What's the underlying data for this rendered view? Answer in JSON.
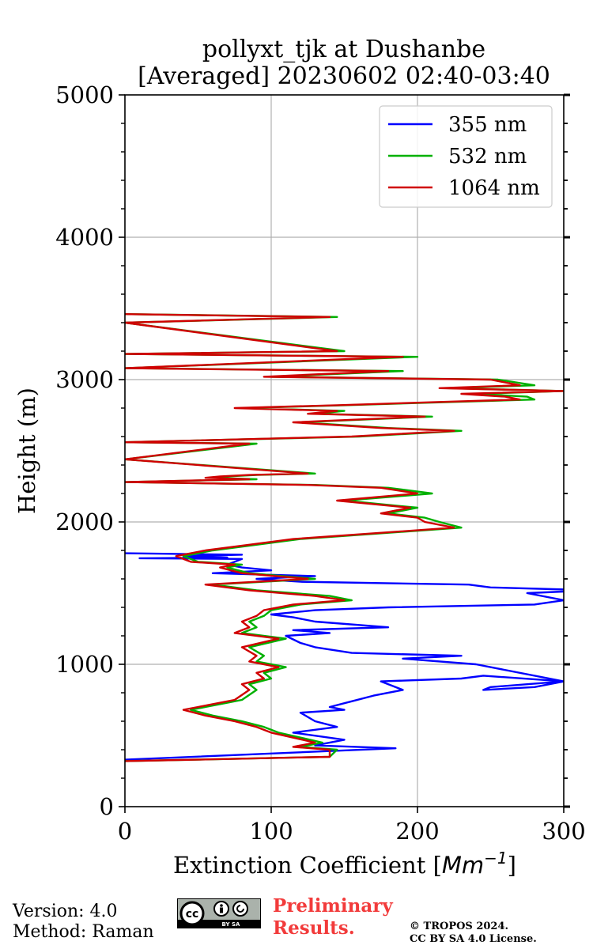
{
  "chart_data": {
    "type": "line",
    "title_line1": "pollyxt_tjk at Dushanbe",
    "title_line2": "[Averaged] 20230602 02:40-03:40",
    "xlabel": "Extinction Coefficient [",
    "xlabel_unit": "Mm",
    "xlabel_exp": "−1",
    "xlabel_end": "]",
    "ylabel": "Height (m)",
    "xlim": [
      0,
      300
    ],
    "ylim": [
      0,
      5000
    ],
    "xticks": [
      0,
      100,
      200,
      300
    ],
    "yticks": [
      0,
      1000,
      2000,
      3000,
      4000,
      5000
    ],
    "yminor_step": 200,
    "grid": true,
    "legend_position": "top-right",
    "series": [
      {
        "name": "355 nm",
        "color": "#0000ff",
        "x": [
          0,
          185,
          130,
          150,
          115,
          145,
          130,
          120,
          150,
          140,
          155,
          170,
          190,
          175,
          230,
          245,
          300,
          250,
          245,
          280,
          300,
          240,
          190,
          230,
          155,
          130,
          120,
          110,
          140,
          115,
          180,
          130,
          115,
          100,
          130,
          180,
          280,
          300,
          275,
          320,
          250,
          235,
          120,
          90,
          130,
          60,
          100,
          80,
          70,
          75,
          80,
          10,
          70,
          40,
          80,
          0
        ],
        "y": [
          330,
          410,
          430,
          470,
          520,
          560,
          600,
          660,
          680,
          700,
          740,
          780,
          820,
          880,
          900,
          920,
          880,
          840,
          820,
          840,
          880,
          1000,
          1040,
          1060,
          1080,
          1120,
          1150,
          1200,
          1220,
          1240,
          1260,
          1300,
          1330,
          1350,
          1380,
          1400,
          1420,
          1450,
          1500,
          1520,
          1540,
          1560,
          1580,
          1600,
          1620,
          1640,
          1660,
          1680,
          1700,
          1720,
          1740,
          1745,
          1750,
          1760,
          1770,
          1780
        ]
      },
      {
        "name": "532 nm",
        "color": "#00b000",
        "x": [
          0,
          140,
          145,
          120,
          135,
          105,
          95,
          80,
          60,
          45,
          55,
          80,
          90,
          85,
          100,
          95,
          110,
          90,
          95,
          85,
          110,
          80,
          90,
          85,
          95,
          100,
          120,
          155,
          140,
          90,
          60,
          130,
          85,
          70,
          80,
          50,
          40,
          60,
          90,
          120,
          230,
          215,
          205,
          180,
          200,
          150,
          210,
          180,
          130,
          0,
          90,
          60,
          70,
          90,
          130,
          0,
          90,
          0,
          160,
          230,
          180,
          120,
          210,
          130,
          150,
          80,
          150,
          280,
          275,
          240,
          300,
          220,
          280,
          255,
          100,
          190,
          0,
          200,
          0,
          150,
          0,
          145,
          0
        ],
        "y": [
          320,
          350,
          400,
          420,
          450,
          520,
          560,
          600,
          640,
          680,
          700,
          750,
          820,
          860,
          900,
          940,
          980,
          1020,
          1060,
          1120,
          1180,
          1220,
          1260,
          1300,
          1340,
          1380,
          1420,
          1450,
          1480,
          1520,
          1560,
          1600,
          1640,
          1680,
          1700,
          1720,
          1760,
          1800,
          1840,
          1880,
          1960,
          2000,
          2030,
          2060,
          2100,
          2150,
          2200,
          2240,
          2260,
          2280,
          2300,
          2310,
          2320,
          2330,
          2340,
          2440,
          2550,
          2560,
          2600,
          2640,
          2660,
          2700,
          2740,
          2760,
          2780,
          2800,
          2820,
          2860,
          2880,
          2900,
          2920,
          2940,
          2960,
          3000,
          3020,
          3060,
          3080,
          3160,
          3180,
          3200,
          3400,
          3440,
          3460
        ]
      },
      {
        "name": "1064 nm",
        "color": "#d00000",
        "x": [
          0,
          140,
          140,
          115,
          130,
          100,
          90,
          75,
          55,
          40,
          50,
          75,
          85,
          80,
          95,
          90,
          105,
          85,
          90,
          80,
          105,
          75,
          85,
          80,
          90,
          95,
          115,
          150,
          130,
          85,
          55,
          125,
          80,
          65,
          75,
          45,
          35,
          55,
          85,
          115,
          225,
          205,
          200,
          175,
          195,
          145,
          200,
          175,
          125,
          0,
          85,
          55,
          65,
          85,
          125,
          0,
          85,
          0,
          155,
          225,
          175,
          115,
          205,
          125,
          145,
          75,
          145,
          270,
          260,
          230,
          300,
          215,
          270,
          250,
          95,
          180,
          0,
          190,
          0,
          145,
          0,
          140,
          0
        ],
        "y": [
          320,
          350,
          400,
          420,
          450,
          520,
          560,
          600,
          640,
          680,
          700,
          750,
          820,
          860,
          900,
          940,
          980,
          1020,
          1060,
          1120,
          1180,
          1220,
          1260,
          1300,
          1340,
          1380,
          1420,
          1450,
          1480,
          1520,
          1560,
          1600,
          1640,
          1680,
          1700,
          1720,
          1760,
          1800,
          1840,
          1880,
          1960,
          2000,
          2030,
          2060,
          2100,
          2150,
          2200,
          2240,
          2260,
          2280,
          2300,
          2310,
          2320,
          2330,
          2340,
          2440,
          2550,
          2560,
          2600,
          2640,
          2660,
          2700,
          2740,
          2760,
          2780,
          2800,
          2820,
          2860,
          2880,
          2900,
          2920,
          2940,
          2960,
          3000,
          3020,
          3060,
          3080,
          3160,
          3180,
          3200,
          3400,
          3440,
          3460
        ]
      }
    ]
  },
  "footer": {
    "version": "Version: 4.0",
    "method": "Method: Raman",
    "preliminary_line1": "Preliminary",
    "preliminary_line2": "Results.",
    "copyright_line1": "© TROPOS 2024.",
    "copyright_line2": "CC BY SA 4.0 License.",
    "license_badge": "BY  SA"
  },
  "colors": {
    "grid": "#b0b0b0",
    "preliminary": "#f23b3b"
  }
}
